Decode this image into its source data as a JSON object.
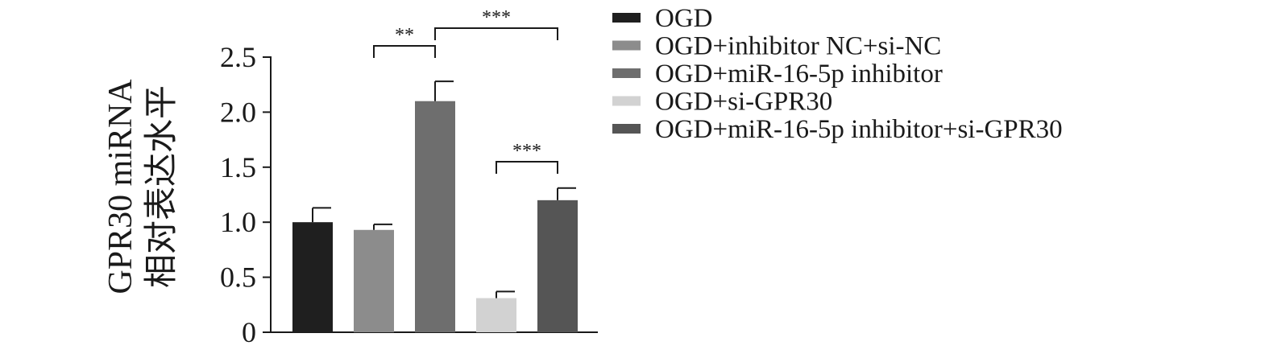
{
  "chart_data": {
    "type": "bar",
    "ylabel_lines": [
      "GPR30 miRNA",
      "相对表达水平"
    ],
    "ylim": [
      0,
      2.5
    ],
    "yticks": [
      0,
      0.5,
      1.0,
      1.5,
      2.0,
      2.5
    ],
    "ytick_labels": [
      "0",
      "0.5",
      "1.0",
      "1.5",
      "2.0",
      "2.5"
    ],
    "grid": false,
    "legend_position": "top-right",
    "bars": [
      {
        "name": "OGD",
        "value": 1.0,
        "error": 0.13,
        "color": "#1f1f1f"
      },
      {
        "name": "OGD+inhibitor NC+si-NC",
        "value": 0.93,
        "error": 0.05,
        "color": "#8c8c8c"
      },
      {
        "name": "OGD+miR-16-5p inhibitor",
        "value": 2.1,
        "error": 0.18,
        "color": "#6e6e6e"
      },
      {
        "name": "OGD+si-GPR30",
        "value": 0.31,
        "error": 0.06,
        "color": "#d2d2d2"
      },
      {
        "name": "OGD+miR-16-5p inhibitor+si-GPR30",
        "value": 1.2,
        "error": 0.11,
        "color": "#555555"
      }
    ],
    "significance": [
      {
        "from": 1,
        "to": 2,
        "label": "**"
      },
      {
        "from": 2,
        "to": 4,
        "label": "***"
      },
      {
        "from": 3,
        "to": 4,
        "label": "***"
      }
    ]
  }
}
